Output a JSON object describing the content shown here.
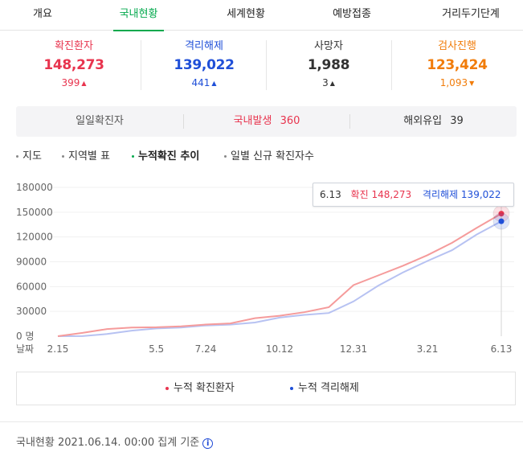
{
  "tabs": [
    {
      "label": "개요"
    },
    {
      "label": "국내현황",
      "active": true
    },
    {
      "label": "세계현황"
    },
    {
      "label": "예방접종"
    },
    {
      "label": "거리두기단계"
    }
  ],
  "stats": [
    {
      "title": "확진환자",
      "value": "148,273",
      "delta": "399",
      "trend": "up",
      "color": "#e8344e"
    },
    {
      "title": "격리해제",
      "value": "139,022",
      "delta": "441",
      "trend": "up",
      "color": "#1f4fd8"
    },
    {
      "title": "사망자",
      "value": "1,988",
      "delta": "3",
      "trend": "up",
      "color": "#333333"
    },
    {
      "title": "검사진행",
      "value": "123,424",
      "delta": "1,093",
      "trend": "down",
      "color": "#f17c0a"
    }
  ],
  "daily": {
    "label": "일일확진자",
    "domestic_label": "국내발생",
    "domestic_value": "360",
    "overseas_label": "해외유입",
    "overseas_value": "39"
  },
  "subtabs": [
    {
      "label": "지도"
    },
    {
      "label": "지역별 표"
    },
    {
      "label": "누적확진 추이",
      "active": true
    },
    {
      "label": "일별 신규 확진자수"
    }
  ],
  "tooltip": {
    "date": "6.13",
    "confirmed_label": "확진",
    "confirmed_value": "148,273",
    "released_label": "격리해제",
    "released_value": "139,022"
  },
  "legend": {
    "confirmed": "누적 확진환자",
    "released": "누적 격리해제"
  },
  "footer": {
    "text": "국내현황 2021.06.14. 00:00 집계 기준",
    "icon": "info-icon"
  },
  "colors": {
    "accent": "#03a94d",
    "confirmed_line": "#f59b9b",
    "released_line": "#b7c2f2",
    "confirmed_marker": "#e8344e",
    "released_marker": "#1f4fd8"
  },
  "chart_data": {
    "type": "line",
    "x_label": "날짜",
    "y_unit": "명",
    "ylim": [
      0,
      180000
    ],
    "y_ticks": [
      180000,
      150000,
      120000,
      90000,
      60000,
      30000,
      0
    ],
    "y_tick_labels": [
      "180000",
      "150000",
      "120000",
      "90000",
      "60000",
      "30000",
      "0 명"
    ],
    "x_tick_labels": [
      "2.15",
      "5.5",
      "7.24",
      "10.12",
      "12.31",
      "3.21",
      "6.13"
    ],
    "x": [
      "2.15",
      "3.1",
      "3.20",
      "4.10",
      "5.5",
      "6.10",
      "7.24",
      "8.15",
      "9.10",
      "10.12",
      "11.15",
      "12.1",
      "12.31",
      "1.20",
      "2.15",
      "3.21",
      "4.20",
      "5.15",
      "6.13"
    ],
    "series": [
      {
        "name": "누적 확진환자",
        "values": [
          30,
          4000,
          8700,
          10400,
          10800,
          11900,
          14100,
          15500,
          21800,
          24700,
          29000,
          35000,
          61800,
          73500,
          85000,
          98000,
          113000,
          131000,
          148273
        ]
      },
      {
        "name": "누적 격리해제",
        "values": [
          16,
          50,
          2600,
          6700,
          9300,
          10500,
          12900,
          14000,
          16500,
          22500,
          25800,
          28000,
          42000,
          61000,
          77000,
          91000,
          104000,
          123000,
          139022
        ]
      }
    ],
    "highlight": {
      "x": "6.13",
      "confirmed": 148273,
      "released": 139022
    }
  }
}
